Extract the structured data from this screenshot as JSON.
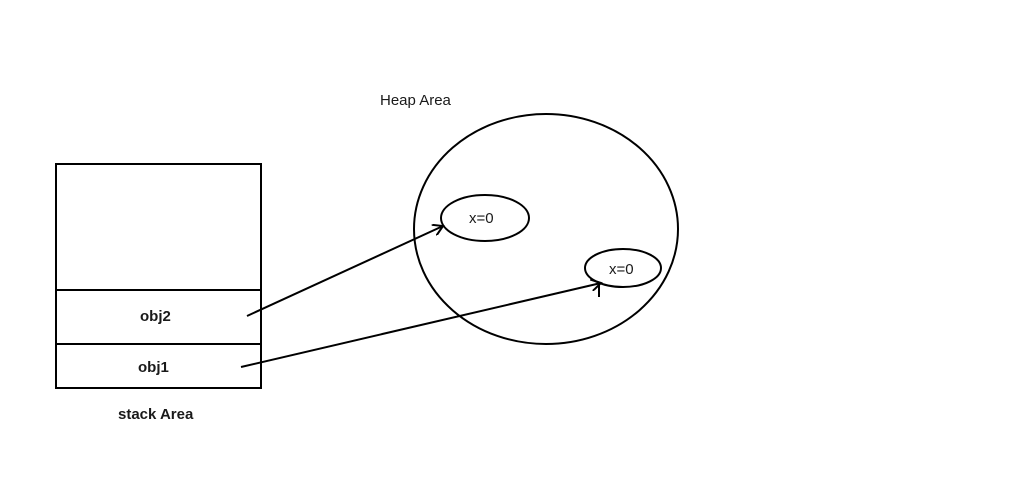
{
  "heap": {
    "title": "Heap Area",
    "objects": [
      {
        "label": "x=0"
      },
      {
        "label": "x=0"
      }
    ]
  },
  "stack": {
    "title": "stack Area",
    "cells": [
      {
        "label": "obj2"
      },
      {
        "label": "obj1"
      }
    ]
  },
  "colors": {
    "line": "#000000",
    "background": "#ffffff"
  }
}
